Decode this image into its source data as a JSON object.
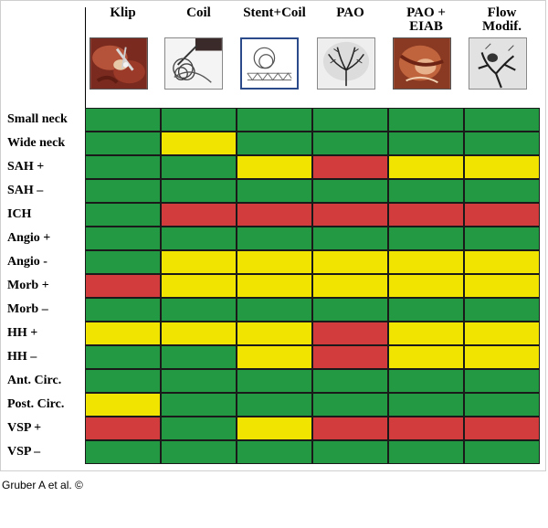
{
  "colors": {
    "green": "#249943",
    "yellow": "#f0e400",
    "red": "#d23c3c"
  },
  "columns": [
    {
      "label": "Klip",
      "thumbnail": "surgical-clip-photo"
    },
    {
      "label": "Coil",
      "thumbnail": "coil-drawing"
    },
    {
      "label": "Stent+Coil",
      "thumbnail": "stent-coil-drawing"
    },
    {
      "label": "PAO",
      "thumbnail": "angiogram-image"
    },
    {
      "label": "PAO +\nEIAB",
      "thumbnail": "bypass-surgery-photo"
    },
    {
      "label": "Flow\nModif.",
      "thumbnail": "flow-diverter-angiogram"
    }
  ],
  "rows": [
    {
      "label": "Small neck",
      "ratings": [
        "green",
        "green",
        "green",
        "green",
        "green",
        "green"
      ]
    },
    {
      "label": "Wide neck",
      "ratings": [
        "green",
        "yellow",
        "green",
        "green",
        "green",
        "green"
      ]
    },
    {
      "label": "SAH +",
      "ratings": [
        "green",
        "green",
        "yellow",
        "red",
        "yellow",
        "yellow"
      ]
    },
    {
      "label": "SAH –",
      "ratings": [
        "green",
        "green",
        "green",
        "green",
        "green",
        "green"
      ]
    },
    {
      "label": "ICH",
      "ratings": [
        "green",
        "red",
        "red",
        "red",
        "red",
        "red"
      ]
    },
    {
      "label": "Angio +",
      "ratings": [
        "green",
        "green",
        "green",
        "green",
        "green",
        "green"
      ]
    },
    {
      "label": "Angio -",
      "ratings": [
        "green",
        "yellow",
        "yellow",
        "yellow",
        "yellow",
        "yellow"
      ]
    },
    {
      "label": "Morb +",
      "ratings": [
        "red",
        "yellow",
        "yellow",
        "yellow",
        "yellow",
        "yellow"
      ]
    },
    {
      "label": "Morb –",
      "ratings": [
        "green",
        "green",
        "green",
        "green",
        "green",
        "green"
      ]
    },
    {
      "label": "HH +",
      "ratings": [
        "yellow",
        "yellow",
        "yellow",
        "red",
        "yellow",
        "yellow"
      ]
    },
    {
      "label": "HH –",
      "ratings": [
        "green",
        "green",
        "yellow",
        "red",
        "yellow",
        "yellow"
      ]
    },
    {
      "label": "Ant. Circ.",
      "ratings": [
        "green",
        "green",
        "green",
        "green",
        "green",
        "green"
      ]
    },
    {
      "label": "Post. Circ.",
      "ratings": [
        "yellow",
        "green",
        "green",
        "green",
        "green",
        "green"
      ]
    },
    {
      "label": "VSP +",
      "ratings": [
        "red",
        "green",
        "yellow",
        "red",
        "red",
        "red"
      ]
    },
    {
      "label": "VSP –",
      "ratings": [
        "green",
        "green",
        "green",
        "green",
        "green",
        "green"
      ]
    }
  ],
  "credit": "Gruber A et al. ©"
}
